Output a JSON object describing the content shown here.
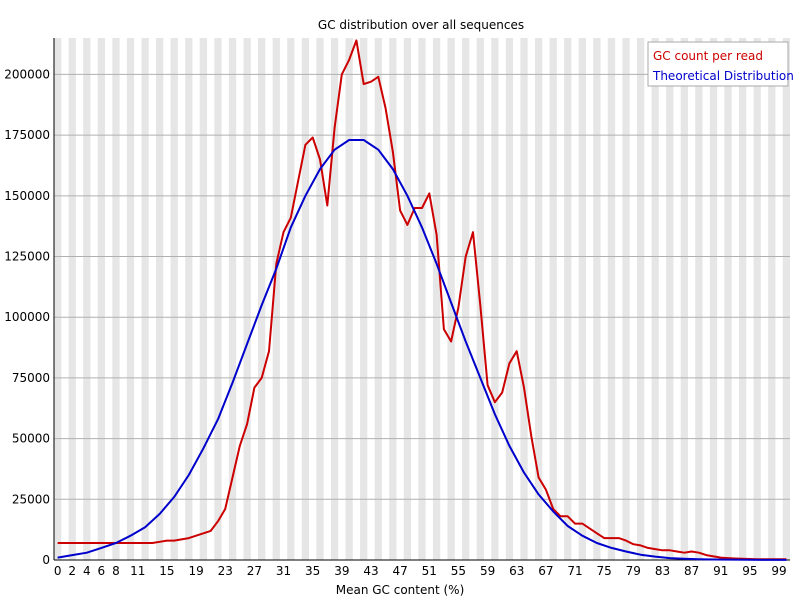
{
  "chart_data": {
    "type": "line",
    "title": "GC distribution over all sequences",
    "xlabel": "Mean GC content (%)",
    "ylabel": "",
    "xlim": [
      0,
      101
    ],
    "ylim": [
      0,
      215000
    ],
    "y_ticks": [
      0,
      25000,
      50000,
      75000,
      100000,
      125000,
      150000,
      175000,
      200000
    ],
    "x_ticks": [
      0,
      2,
      4,
      6,
      8,
      11,
      15,
      19,
      23,
      27,
      31,
      35,
      39,
      43,
      47,
      51,
      55,
      59,
      63,
      67,
      71,
      75,
      79,
      83,
      87,
      91,
      95,
      99
    ],
    "grid": "horizontal lines with alternating vertical bands",
    "legend_position": "top-right",
    "series": [
      {
        "name": "GC count per read",
        "color": "#cc0000",
        "points": [
          [
            0,
            7000
          ],
          [
            4,
            7000
          ],
          [
            10,
            7000
          ],
          [
            13,
            7000
          ],
          [
            14,
            7500
          ],
          [
            15,
            8000
          ],
          [
            16,
            8000
          ],
          [
            17,
            8500
          ],
          [
            18,
            9000
          ],
          [
            19,
            10000
          ],
          [
            20,
            11000
          ],
          [
            21,
            12000
          ],
          [
            22,
            16000
          ],
          [
            23,
            21000
          ],
          [
            24,
            34000
          ],
          [
            25,
            47000
          ],
          [
            26,
            56000
          ],
          [
            27,
            71000
          ],
          [
            28,
            75000
          ],
          [
            29,
            86000
          ],
          [
            30,
            122000
          ],
          [
            31,
            135000
          ],
          [
            32,
            141000
          ],
          [
            33,
            156000
          ],
          [
            34,
            171000
          ],
          [
            35,
            174000
          ],
          [
            36,
            165000
          ],
          [
            37,
            146000
          ],
          [
            38,
            178000
          ],
          [
            39,
            200000
          ],
          [
            40,
            206000
          ],
          [
            41,
            214000
          ],
          [
            42,
            196000
          ],
          [
            43,
            197000
          ],
          [
            44,
            199000
          ],
          [
            45,
            186000
          ],
          [
            46,
            168000
          ],
          [
            47,
            144000
          ],
          [
            48,
            138000
          ],
          [
            49,
            145000
          ],
          [
            50,
            145000
          ],
          [
            51,
            151000
          ],
          [
            52,
            134000
          ],
          [
            53,
            95000
          ],
          [
            54,
            90000
          ],
          [
            55,
            104000
          ],
          [
            56,
            125000
          ],
          [
            57,
            135000
          ],
          [
            58,
            105000
          ],
          [
            59,
            72000
          ],
          [
            60,
            65000
          ],
          [
            61,
            69000
          ],
          [
            62,
            81000
          ],
          [
            63,
            86000
          ],
          [
            64,
            71000
          ],
          [
            65,
            51000
          ],
          [
            66,
            34000
          ],
          [
            67,
            29000
          ],
          [
            68,
            21000
          ],
          [
            69,
            18000
          ],
          [
            70,
            18000
          ],
          [
            71,
            15000
          ],
          [
            72,
            15000
          ],
          [
            73,
            13000
          ],
          [
            74,
            11000
          ],
          [
            75,
            9000
          ],
          [
            76,
            9000
          ],
          [
            77,
            9000
          ],
          [
            78,
            8000
          ],
          [
            79,
            6500
          ],
          [
            80,
            6000
          ],
          [
            81,
            5000
          ],
          [
            82,
            4500
          ],
          [
            83,
            4000
          ],
          [
            84,
            4000
          ],
          [
            85,
            3500
          ],
          [
            86,
            3000
          ],
          [
            87,
            3500
          ],
          [
            88,
            3000
          ],
          [
            89,
            2000
          ],
          [
            90,
            1500
          ],
          [
            91,
            1000
          ],
          [
            92,
            800
          ],
          [
            93,
            600
          ],
          [
            94,
            500
          ],
          [
            95,
            400
          ],
          [
            96,
            300
          ],
          [
            97,
            300
          ],
          [
            98,
            300
          ],
          [
            100,
            300
          ]
        ]
      },
      {
        "name": "Theoretical Distribution",
        "color": "#0000cc",
        "points": [
          [
            0,
            1000
          ],
          [
            2,
            2000
          ],
          [
            4,
            3000
          ],
          [
            6,
            5000
          ],
          [
            8,
            7000
          ],
          [
            10,
            10000
          ],
          [
            12,
            13500
          ],
          [
            14,
            19000
          ],
          [
            16,
            26000
          ],
          [
            18,
            35000
          ],
          [
            20,
            46000
          ],
          [
            22,
            58000
          ],
          [
            24,
            73000
          ],
          [
            26,
            89000
          ],
          [
            28,
            105000
          ],
          [
            30,
            120000
          ],
          [
            32,
            137000
          ],
          [
            34,
            150000
          ],
          [
            36,
            161000
          ],
          [
            38,
            169000
          ],
          [
            40,
            173000
          ],
          [
            42,
            173000
          ],
          [
            44,
            169000
          ],
          [
            46,
            161000
          ],
          [
            48,
            150000
          ],
          [
            50,
            137000
          ],
          [
            52,
            122000
          ],
          [
            54,
            106000
          ],
          [
            56,
            90000
          ],
          [
            58,
            75000
          ],
          [
            60,
            60000
          ],
          [
            62,
            47000
          ],
          [
            64,
            36000
          ],
          [
            66,
            27000
          ],
          [
            68,
            20000
          ],
          [
            70,
            14000
          ],
          [
            72,
            10000
          ],
          [
            74,
            7000
          ],
          [
            76,
            5000
          ],
          [
            78,
            3500
          ],
          [
            80,
            2200
          ],
          [
            82,
            1400
          ],
          [
            84,
            800
          ],
          [
            86,
            500
          ],
          [
            88,
            300
          ],
          [
            90,
            200
          ],
          [
            95,
            100
          ],
          [
            100,
            50
          ]
        ]
      }
    ]
  }
}
